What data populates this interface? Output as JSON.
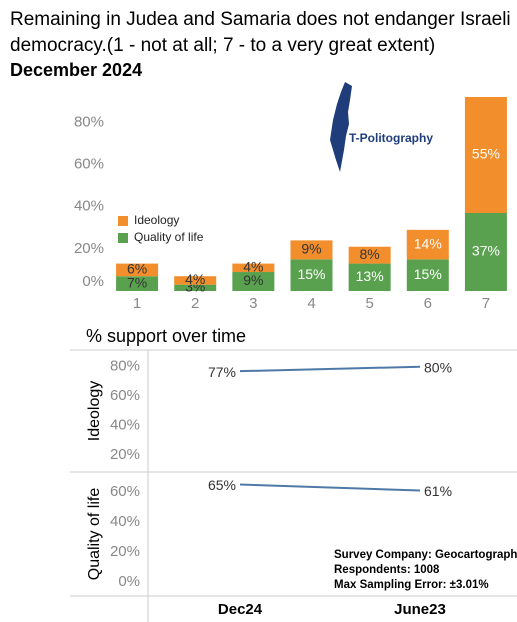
{
  "logo": "T-Politography",
  "chart_data": [
    {
      "type": "stacked_bar",
      "title": "Remaining in Judea and Samaria does not endanger Israeli democracy.(1 - not at all; 7 - to a very great extent)",
      "subtitle": "December 2024",
      "categories": [
        "1",
        "2",
        "3",
        "4",
        "5",
        "6",
        "7"
      ],
      "series": [
        {
          "name": "Quality of life",
          "color": "#59a14f",
          "values": [
            7,
            3,
            9,
            15,
            13,
            15,
            37
          ],
          "value_labels": [
            "7%",
            "3%",
            "9%",
            "15%",
            "13%",
            "15%",
            "37%"
          ]
        },
        {
          "name": "Ideology",
          "color": "#f28e2b",
          "values": [
            6,
            4,
            4,
            9,
            8,
            14,
            55
          ],
          "value_labels": [
            "6%",
            "4%",
            "4%",
            "9%",
            "8%",
            "14%",
            "55%"
          ]
        }
      ],
      "ylim": [
        0,
        92
      ],
      "yticks": [
        {
          "value": 0,
          "label": "0%"
        },
        {
          "value": 20,
          "label": "20%"
        },
        {
          "value": 40,
          "label": "40%"
        },
        {
          "value": 60,
          "label": "60%"
        },
        {
          "value": 80,
          "label": "80%"
        }
      ],
      "legend": "left",
      "grid": false
    },
    {
      "type": "line",
      "title": "% support over time",
      "categories": [
        "Dec24",
        "June23"
      ],
      "color": "#4e79a7",
      "panels": [
        {
          "name": "Ideology",
          "values": [
            77,
            80
          ],
          "value_labels": [
            "77%",
            "80%"
          ],
          "ylim": [
            10,
            90
          ],
          "yticks": [
            {
              "value": 20,
              "label": "20%"
            },
            {
              "value": 40,
              "label": "40%"
            },
            {
              "value": 60,
              "label": "60%"
            },
            {
              "value": 80,
              "label": "80%"
            }
          ]
        },
        {
          "name": "Quality of life",
          "values": [
            65,
            61
          ],
          "value_labels": [
            "65%",
            "61%"
          ],
          "ylim": [
            -8,
            72
          ],
          "yticks": [
            {
              "value": 0,
              "label": "0%"
            },
            {
              "value": 20,
              "label": "20%"
            },
            {
              "value": 40,
              "label": "40%"
            },
            {
              "value": 60,
              "label": "60%"
            }
          ]
        }
      ],
      "annotations": [
        "Survey Company: Geocartography",
        "Respondents: 1008",
        "Max Sampling Error: ±3.01%"
      ]
    }
  ]
}
